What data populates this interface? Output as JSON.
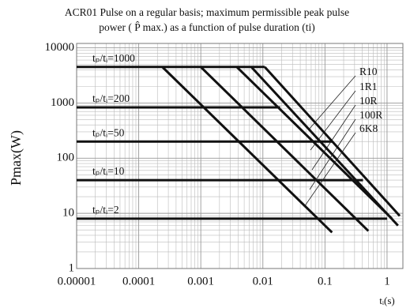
{
  "chart_data": {
    "type": "line",
    "title": [
      "ACR01 Pulse on a regular basis; maximum permissible peak pulse",
      "power ( P̂ max.) as a function of pulse duration (ti)"
    ],
    "ylabel": "Pmax(W)",
    "xlabel": "tᵢ(s)",
    "log_x": true,
    "log_y": true,
    "grid": true,
    "xlim": [
      1e-05,
      1.8
    ],
    "ylim": [
      1,
      12000
    ],
    "xticks": [
      1e-05,
      0.0001,
      0.001,
      0.01,
      0.1,
      1
    ],
    "yticks": [
      1,
      10,
      100,
      1000,
      10000
    ],
    "series": [
      {
        "name": "tₚ/tᵢ=1000",
        "color": "#111",
        "x": [
          1e-05,
          0.0107
        ],
        "values": [
          4500,
          4500
        ]
      },
      {
        "name": "tₚ/tᵢ=200",
        "color": "#111",
        "x": [
          1e-05,
          0.019
        ],
        "values": [
          830,
          830
        ]
      },
      {
        "name": "tₚ/tᵢ=50",
        "color": "#111",
        "x": [
          1e-05,
          0.13
        ],
        "values": [
          200,
          200
        ]
      },
      {
        "name": "tₚ/tᵢ=10",
        "color": "#111",
        "x": [
          1e-05,
          0.41
        ],
        "values": [
          40,
          40
        ]
      },
      {
        "name": "tₚ/tᵢ=2",
        "color": "#111",
        "x": [
          1e-05,
          1.0
        ],
        "values": [
          8,
          8
        ]
      },
      {
        "name": "R10",
        "color": "#111",
        "x": [
          0.00024,
          0.13
        ],
        "values": [
          4500,
          4.5
        ]
      },
      {
        "name": "1R1",
        "color": "#111",
        "x": [
          0.001,
          0.5
        ],
        "values": [
          4500,
          4.8
        ]
      },
      {
        "name": "10R",
        "color": "#111",
        "x": [
          0.0038,
          1.2
        ],
        "values": [
          4500,
          8
        ]
      },
      {
        "name": "100R",
        "color": "#111",
        "x": [
          0.0065,
          1.5
        ],
        "values": [
          4500,
          6
        ]
      },
      {
        "name": "6K8",
        "color": "#111",
        "x": [
          0.0107,
          1.6
        ],
        "values": [
          4500,
          9
        ]
      }
    ]
  }
}
